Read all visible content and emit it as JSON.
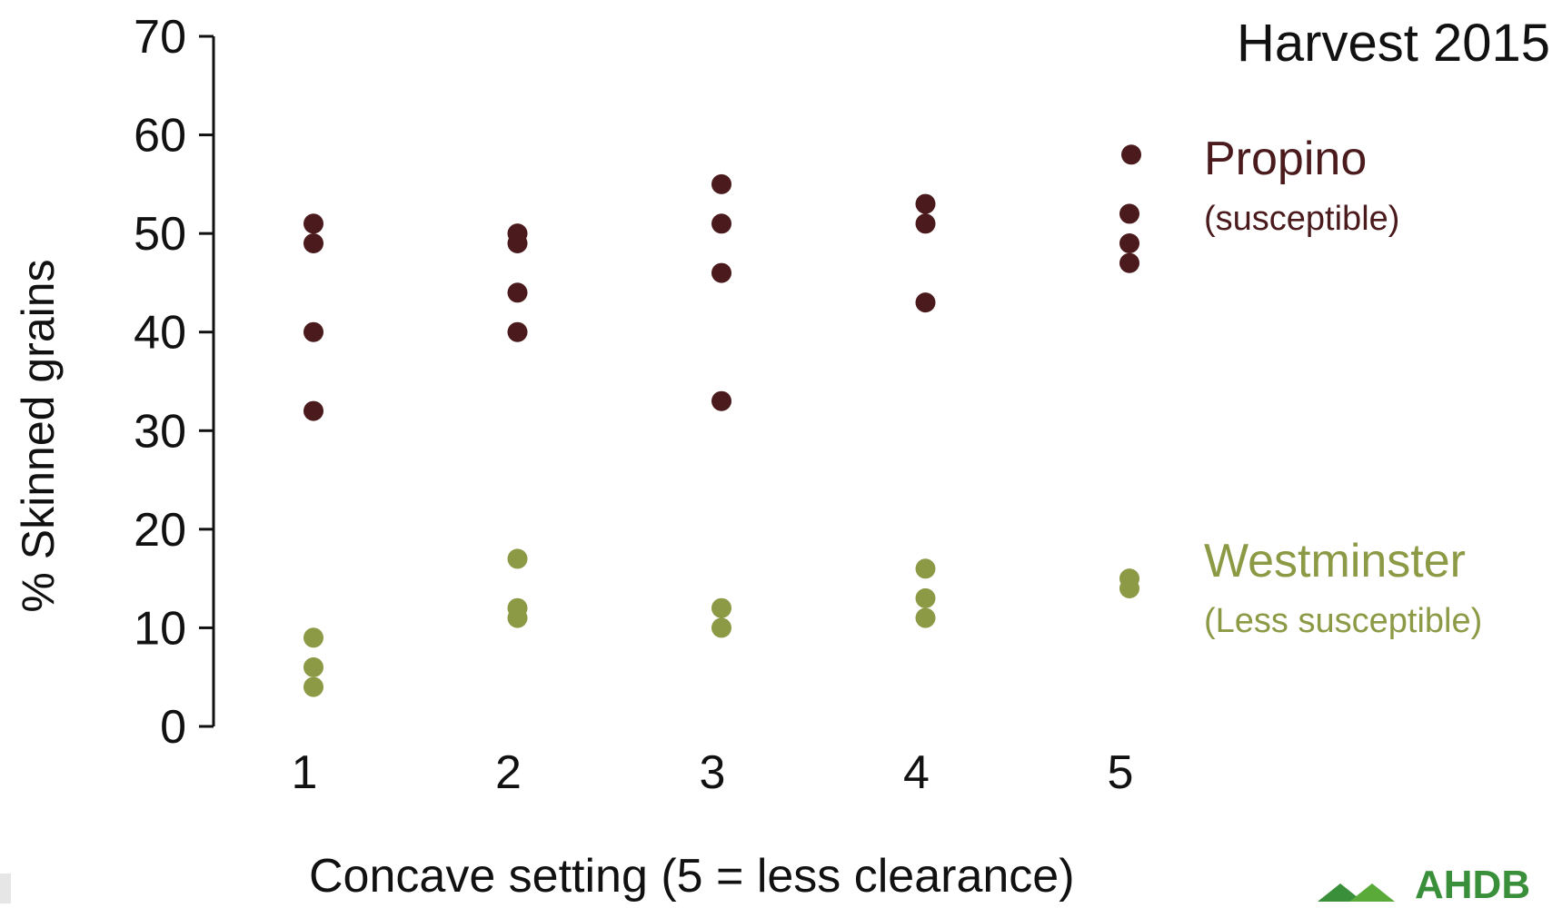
{
  "chart_data": {
    "type": "scatter",
    "title": "Harvest 2015",
    "xlabel": "Concave setting (5 = less clearance)",
    "ylabel": "% Skinned grains",
    "x_ticks": [
      "1",
      "2",
      "3",
      "4",
      "5"
    ],
    "y_ticks": [
      "0",
      "10",
      "20",
      "30",
      "40",
      "50",
      "60",
      "70"
    ],
    "ylim": [
      0,
      70
    ],
    "xlim": [
      0.5,
      5.5
    ],
    "grid": false,
    "legend_placement": "right",
    "series": [
      {
        "name": "Propino",
        "note": "(susceptible)",
        "color": "#4a1a1c",
        "points": [
          [
            1,
            51
          ],
          [
            1,
            49
          ],
          [
            1,
            40
          ],
          [
            1,
            32
          ],
          [
            2,
            50
          ],
          [
            2,
            49
          ],
          [
            2,
            44
          ],
          [
            2,
            40
          ],
          [
            3,
            55
          ],
          [
            3,
            51
          ],
          [
            3,
            46
          ],
          [
            3,
            33
          ],
          [
            4,
            53
          ],
          [
            4,
            51
          ],
          [
            4,
            43
          ],
          [
            5,
            52
          ],
          [
            5,
            49
          ],
          [
            5,
            47
          ]
        ]
      },
      {
        "name": "Westminster",
        "note": "(Less susceptible)",
        "color": "#8c9a45",
        "points": [
          [
            1,
            9
          ],
          [
            1,
            6
          ],
          [
            1,
            4
          ],
          [
            2,
            17
          ],
          [
            2,
            12
          ],
          [
            2,
            11
          ],
          [
            3,
            12
          ],
          [
            3,
            10
          ],
          [
            4,
            16
          ],
          [
            4,
            13
          ],
          [
            4,
            11
          ],
          [
            5,
            15
          ],
          [
            5,
            14
          ]
        ]
      }
    ]
  },
  "logo": {
    "text": "AHDB",
    "color": "#3a8f3a"
  }
}
